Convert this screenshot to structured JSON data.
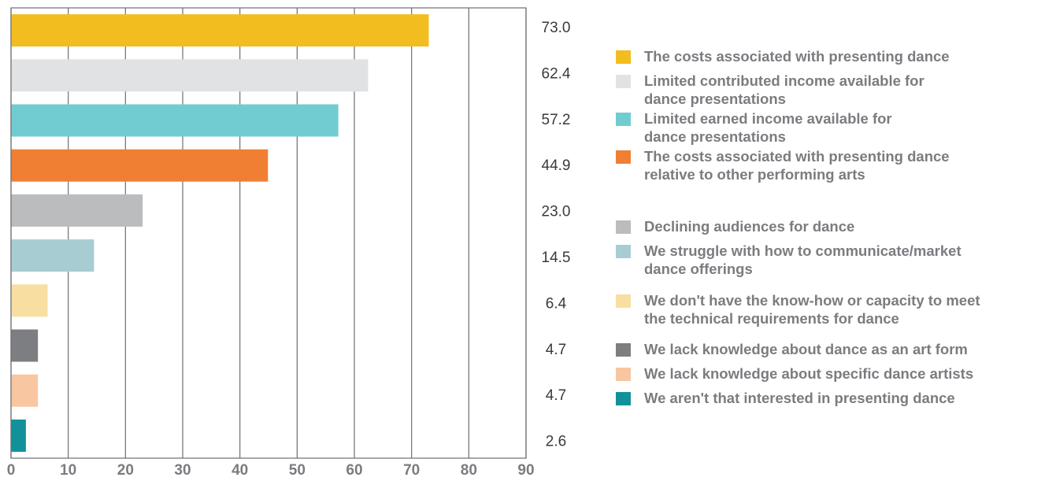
{
  "chart_data": {
    "type": "bar",
    "orientation": "horizontal",
    "categories": [
      "The costs associated with presenting dance",
      "Limited contributed income available for dance presentations",
      "Limited earned income available for dance presentations",
      "The costs associated with presenting dance relative to other performing arts",
      "Declining audiences for dance",
      "We struggle with how to communicate/market dance offerings",
      "We don't have the know-how or capacity to meet the technical requirements for dance",
      "We lack knowledge about dance as an art form",
      "We lack knowledge about specific dance artists",
      "We aren't that interested in presenting dance"
    ],
    "values": [
      73.0,
      62.4,
      57.2,
      44.9,
      23.0,
      14.5,
      6.4,
      4.7,
      4.7,
      2.6
    ],
    "value_labels": [
      "73.0",
      "62.4",
      "57.2",
      "44.9",
      "23.0",
      "14.5",
      "6.4",
      "4.7",
      "4.7",
      "2.6"
    ],
    "colors": [
      "#f2bd1e",
      "#e1e2e4",
      "#71ccd1",
      "#f07f34",
      "#bbbcbe",
      "#a7cdd3",
      "#f8dfa1",
      "#7d7e82",
      "#f8c6a0",
      "#11929a"
    ],
    "xlim": [
      0,
      90
    ],
    "xticks": [
      "0",
      "10",
      "20",
      "30",
      "40",
      "50",
      "60",
      "70",
      "80",
      "90"
    ],
    "grid": true,
    "legend_position": "right",
    "legend": [
      {
        "lines": [
          "The costs associated with presenting dance"
        ]
      },
      {
        "lines": [
          "Limited contributed income available for",
          "dance presentations"
        ]
      },
      {
        "lines": [
          "Limited earned income available for",
          "dance presentations"
        ]
      },
      {
        "lines": [
          "The costs associated with presenting dance",
          "relative to other performing arts"
        ]
      },
      {
        "lines": [
          "Declining audiences for dance"
        ]
      },
      {
        "lines": [
          "We struggle with how to communicate/market",
          "dance offerings"
        ]
      },
      {
        "lines": [
          "We don't have the know-how or capacity to meet",
          "the technical requirements for dance"
        ]
      },
      {
        "lines": [
          "We lack knowledge about dance as an art form"
        ]
      },
      {
        "lines": [
          "We lack knowledge about specific dance artists"
        ]
      },
      {
        "lines": [
          "We aren't that interested in presenting dance"
        ]
      }
    ]
  }
}
